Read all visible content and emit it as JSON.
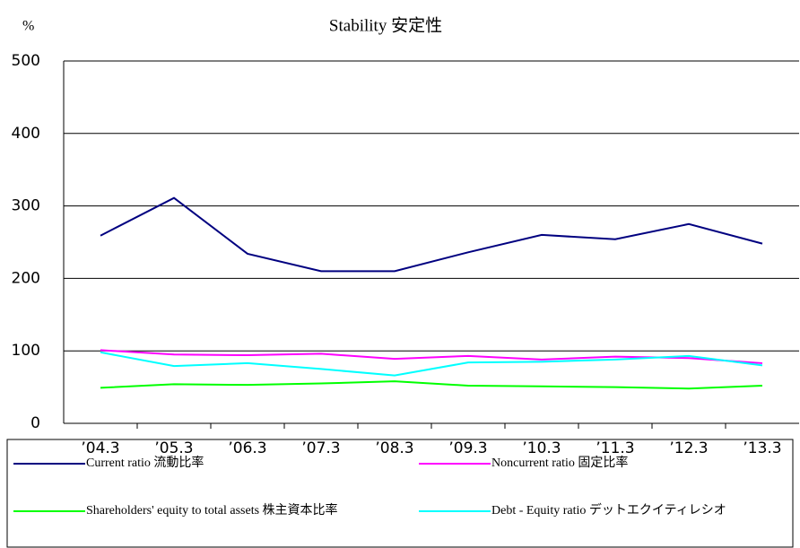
{
  "chart_data": {
    "type": "line",
    "title": "Stability 安定性",
    "y_unit": "%",
    "categories": [
      "’04.3",
      "’05.3",
      "’06.3",
      "’07.3",
      "’08.3",
      "’09.3",
      "’10.3",
      "’11.3",
      "’12.3",
      "’13.3"
    ],
    "series": [
      {
        "name": "Current ratio 流動比率",
        "color": "#000080",
        "values": [
          259,
          311,
          234,
          210,
          210,
          236,
          260,
          254,
          275,
          248
        ]
      },
      {
        "name": "Noncurrent ratio 固定比率",
        "color": "#ff00ff",
        "values": [
          101,
          95,
          94,
          96,
          89,
          93,
          88,
          92,
          90,
          83
        ]
      },
      {
        "name": "Shareholders' equity to total assets 株主資本比率",
        "color": "#00ff00",
        "values": [
          49,
          54,
          53,
          55,
          58,
          52,
          51,
          50,
          48,
          52
        ]
      },
      {
        "name": "Debt - Equity ratio デットエクイティレシオ",
        "color": "#00ffff",
        "values": [
          98,
          79,
          83,
          75,
          66,
          84,
          85,
          88,
          93,
          80
        ]
      }
    ],
    "ylim": [
      0,
      500
    ],
    "yticks": [
      0,
      100,
      200,
      300,
      400,
      500
    ],
    "grid": true
  }
}
